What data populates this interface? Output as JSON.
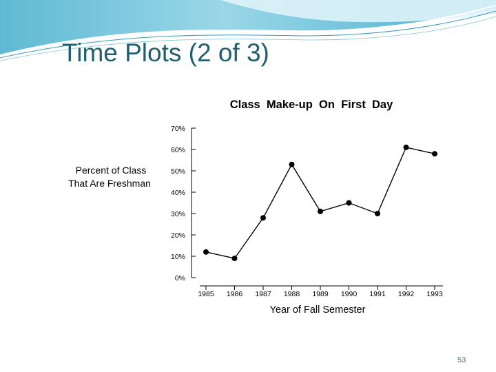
{
  "slide": {
    "title": "Time Plots (2 of 3)",
    "page_number": "53"
  },
  "chart_data": {
    "type": "line",
    "title": "Class  Make-up  On  First  Day",
    "xlabel": "Year of Fall Semester",
    "ylabel_lines": [
      "Percent of Class",
      "That Are Freshman"
    ],
    "categories": [
      "1985",
      "1986",
      "1987",
      "1988",
      "1989",
      "1990",
      "1991",
      "1992",
      "1993"
    ],
    "values": [
      12,
      9,
      28,
      53,
      31,
      35,
      30,
      61,
      58
    ],
    "y_ticks": [
      0,
      10,
      20,
      30,
      40,
      50,
      60,
      70
    ],
    "y_tick_labels": [
      "0%",
      "10%",
      "20%",
      "30%",
      "40%",
      "50%",
      "60%",
      "70%"
    ],
    "ylim": [
      0,
      70
    ],
    "grid": false,
    "colors": {
      "line": "#000000",
      "marker": "#000000"
    }
  }
}
